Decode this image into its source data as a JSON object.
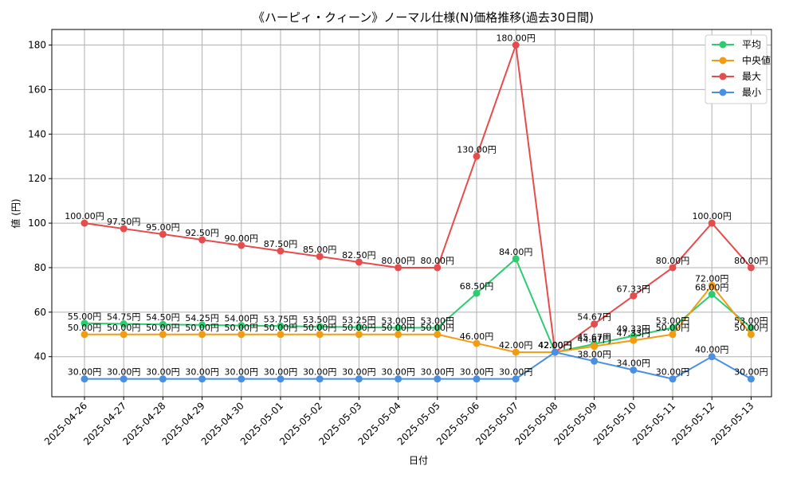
{
  "chart_data": {
    "type": "line",
    "title": "《ハーピィ・クィーン》ノーマル仕様(N)価格推移(過去30日間)",
    "xlabel": "日付",
    "ylabel": "値 (円)",
    "categories": [
      "2025-04-26",
      "2025-04-27",
      "2025-04-28",
      "2025-04-29",
      "2025-04-30",
      "2025-05-01",
      "2025-05-02",
      "2025-05-03",
      "2025-05-04",
      "2025-05-05",
      "2025-05-06",
      "2025-05-07",
      "2025-05-08",
      "2025-05-09",
      "2025-05-10",
      "2025-05-11",
      "2025-05-12",
      "2025-05-13"
    ],
    "ylim": [
      22,
      187
    ],
    "yticks": [
      40,
      60,
      80,
      100,
      120,
      140,
      160,
      180
    ],
    "grid": true,
    "legend_position": "top-right",
    "value_suffix": "円",
    "series": [
      {
        "name": "平均",
        "color": "#2ecc71",
        "values": [
          55.0,
          54.75,
          54.5,
          54.25,
          54.0,
          53.75,
          53.5,
          53.25,
          53.0,
          53.0,
          68.5,
          84.0,
          42.0,
          45.67,
          49.33,
          53.0,
          68.0,
          53.0
        ]
      },
      {
        "name": "中央値",
        "color": "#f39c12",
        "values": [
          50.0,
          50.0,
          50.0,
          50.0,
          50.0,
          50.0,
          50.0,
          50.0,
          50.0,
          50.0,
          46.0,
          42.0,
          42.0,
          44.67,
          47.33,
          50.0,
          72.0,
          50.0
        ]
      },
      {
        "name": "最大",
        "color": "#e74c4c",
        "values": [
          100.0,
          97.5,
          95.0,
          92.5,
          90.0,
          87.5,
          85.0,
          82.5,
          80.0,
          80.0,
          130.0,
          180.0,
          42.0,
          54.67,
          67.33,
          80.0,
          100.0,
          80.0
        ]
      },
      {
        "name": "最小",
        "color": "#4a90e2",
        "values": [
          30.0,
          30.0,
          30.0,
          30.0,
          30.0,
          30.0,
          30.0,
          30.0,
          30.0,
          30.0,
          30.0,
          30.0,
          42.0,
          38.0,
          34.0,
          30.0,
          40.0,
          30.0
        ]
      }
    ]
  }
}
